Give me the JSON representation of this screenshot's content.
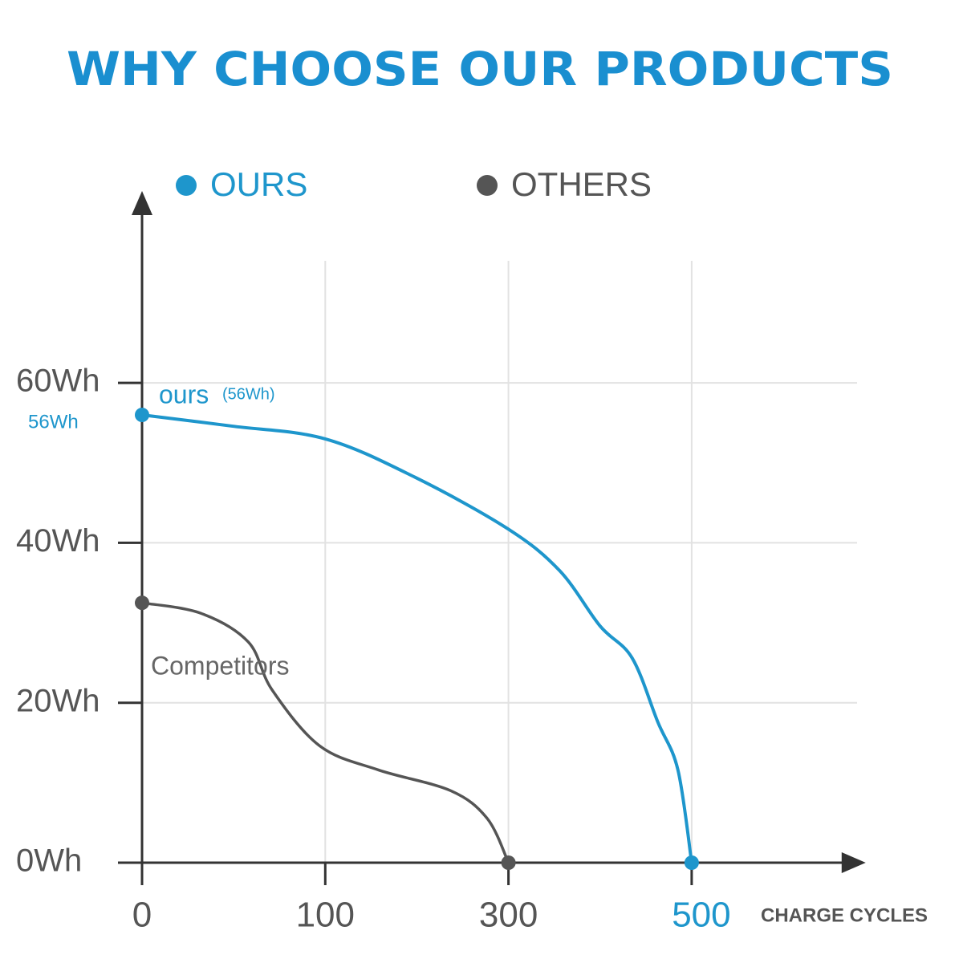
{
  "chart_data": {
    "type": "line",
    "title": "WHY CHOOSE OUR PRODUCTS",
    "x_label": "CHARGE CYCLES",
    "xticks": [
      0,
      100,
      300,
      500
    ],
    "xlim": [
      0,
      690
    ],
    "ylim": [
      0,
      84
    ],
    "yticks": [
      {
        "value": 0,
        "label": "0Wh"
      },
      {
        "value": 20,
        "label": "20Wh"
      },
      {
        "value": 40,
        "label": "40Wh"
      },
      {
        "value": 60,
        "label": "60Wh"
      }
    ],
    "grid": true,
    "legend": "top",
    "series": [
      {
        "name": "OURS",
        "color": "#1e96cc",
        "x": [
          0,
          49,
          100,
          198,
          300,
          356,
          400,
          435,
          463,
          485,
          500
        ],
        "values": [
          56,
          54.6,
          53,
          48.2,
          41.7,
          36.5,
          29.6,
          25.6,
          17.6,
          11.6,
          0
        ]
      },
      {
        "name": "OTHERS",
        "color": "#555555",
        "x": [
          0,
          32,
          58,
          71,
          97,
          158,
          237,
          277,
          300
        ],
        "values": [
          32.5,
          31.2,
          27.6,
          21.6,
          14.6,
          11.6,
          9,
          5.5,
          0
        ]
      }
    ],
    "annotations": [
      {
        "text": "ours",
        "series": 0
      },
      {
        "text": "(56Wh)",
        "series": 0
      },
      {
        "text": "56Wh",
        "series": 0
      },
      {
        "text": "Competitors",
        "series": 1
      }
    ]
  }
}
